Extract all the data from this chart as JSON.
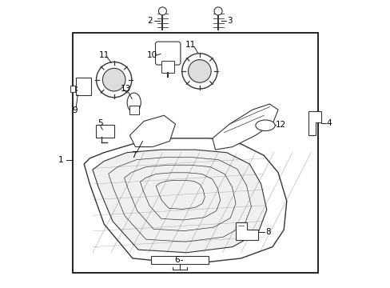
{
  "bg_color": "#ffffff",
  "border_color": "#000000",
  "line_color": "#333333",
  "label_color": "#000000",
  "fontsize": 7.5
}
